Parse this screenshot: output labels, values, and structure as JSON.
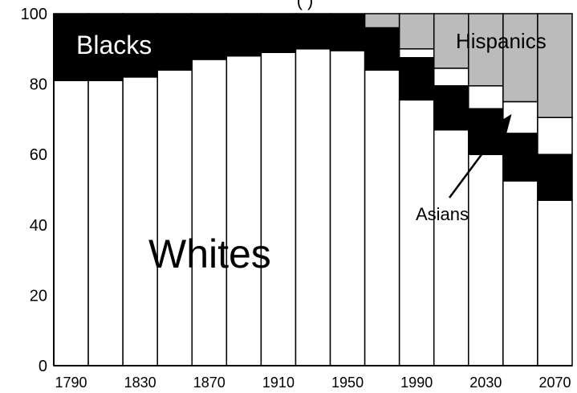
{
  "chart_data": {
    "type": "bar",
    "stacked": true,
    "title_fragment": "(                                  )",
    "x": [
      1790,
      1810,
      1830,
      1850,
      1870,
      1890,
      1910,
      1930,
      1950,
      1970,
      1990,
      2010,
      2030,
      2050,
      2070
    ],
    "x_tick_labels": [
      "1790",
      "1830",
      "1870",
      "1910",
      "1950",
      "1990",
      "2030",
      "2070"
    ],
    "y_ticks": [
      0,
      20,
      40,
      60,
      80,
      100
    ],
    "ylim": [
      0,
      100
    ],
    "series": [
      {
        "name": "Whites",
        "color": "#ffffff",
        "values": [
          81,
          81,
          82,
          84,
          87,
          88,
          89,
          90,
          89.5,
          84,
          75.5,
          67,
          60,
          52.5,
          47
        ]
      },
      {
        "name": "Blacks",
        "color": "#000000",
        "values": [
          19,
          19,
          18,
          16,
          13,
          12,
          11,
          10,
          10.5,
          12,
          12,
          12.5,
          13,
          13.5,
          13
        ]
      },
      {
        "name": "Asians",
        "color": "#ffffff",
        "values": [
          0,
          0,
          0,
          0,
          0,
          0,
          0,
          0,
          0,
          0,
          2.5,
          5,
          6.5,
          9,
          10.5
        ]
      },
      {
        "name": "Hispanics",
        "color": "#bbbbbb",
        "values": [
          0,
          0,
          0,
          0,
          0,
          0,
          0,
          0,
          0,
          4,
          10,
          15.5,
          20.5,
          25,
          29.5
        ]
      }
    ],
    "annotations": {
      "whites": "Whites",
      "blacks": "Blacks",
      "hispanics": "Hispanics",
      "asians": "Asians"
    },
    "grid": false,
    "legend": "none (inline labels)"
  }
}
